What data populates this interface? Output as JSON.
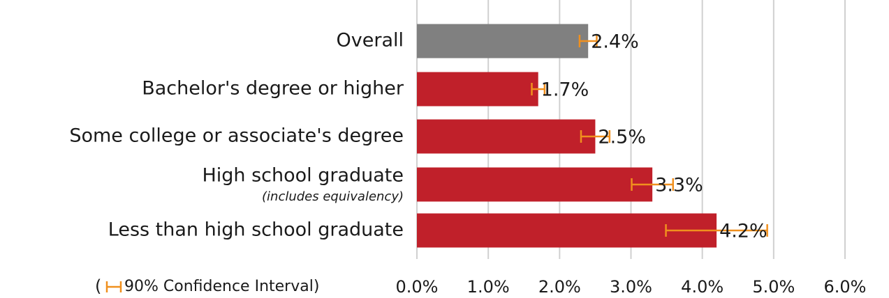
{
  "chart_data": {
    "type": "hbar",
    "categories": [
      "Overall",
      "Bachelor's degree or higher",
      "Some college or associate's degree",
      "High school graduate",
      "Less than high school graduate"
    ],
    "category_notes": [
      null,
      null,
      null,
      "(includes equivalency)",
      null
    ],
    "values": [
      2.4,
      1.7,
      2.5,
      3.3,
      4.2
    ],
    "value_labels": [
      "2.4%",
      "1.7%",
      "2.5%",
      "3.3%",
      "4.2%"
    ],
    "errors": [
      0.12,
      0.09,
      0.2,
      0.29,
      0.71
    ],
    "colors": [
      "#808080",
      "#c0202a",
      "#c0202a",
      "#c0202a",
      "#c0202a"
    ],
    "error_color": "#f0901e",
    "error_label_open": "(",
    "error_label": "90% Confidence Interval)",
    "xlim": [
      0,
      6
    ],
    "xticks": [
      {
        "value": 0,
        "label": "0.0%"
      },
      {
        "value": 1,
        "label": "1.0%"
      },
      {
        "value": 2,
        "label": "2.0%"
      },
      {
        "value": 3,
        "label": "3.0%"
      },
      {
        "value": 4,
        "label": "4.0%"
      },
      {
        "value": 5,
        "label": "5.0%"
      },
      {
        "value": 6,
        "label": "6.0%"
      }
    ],
    "grid": true
  }
}
